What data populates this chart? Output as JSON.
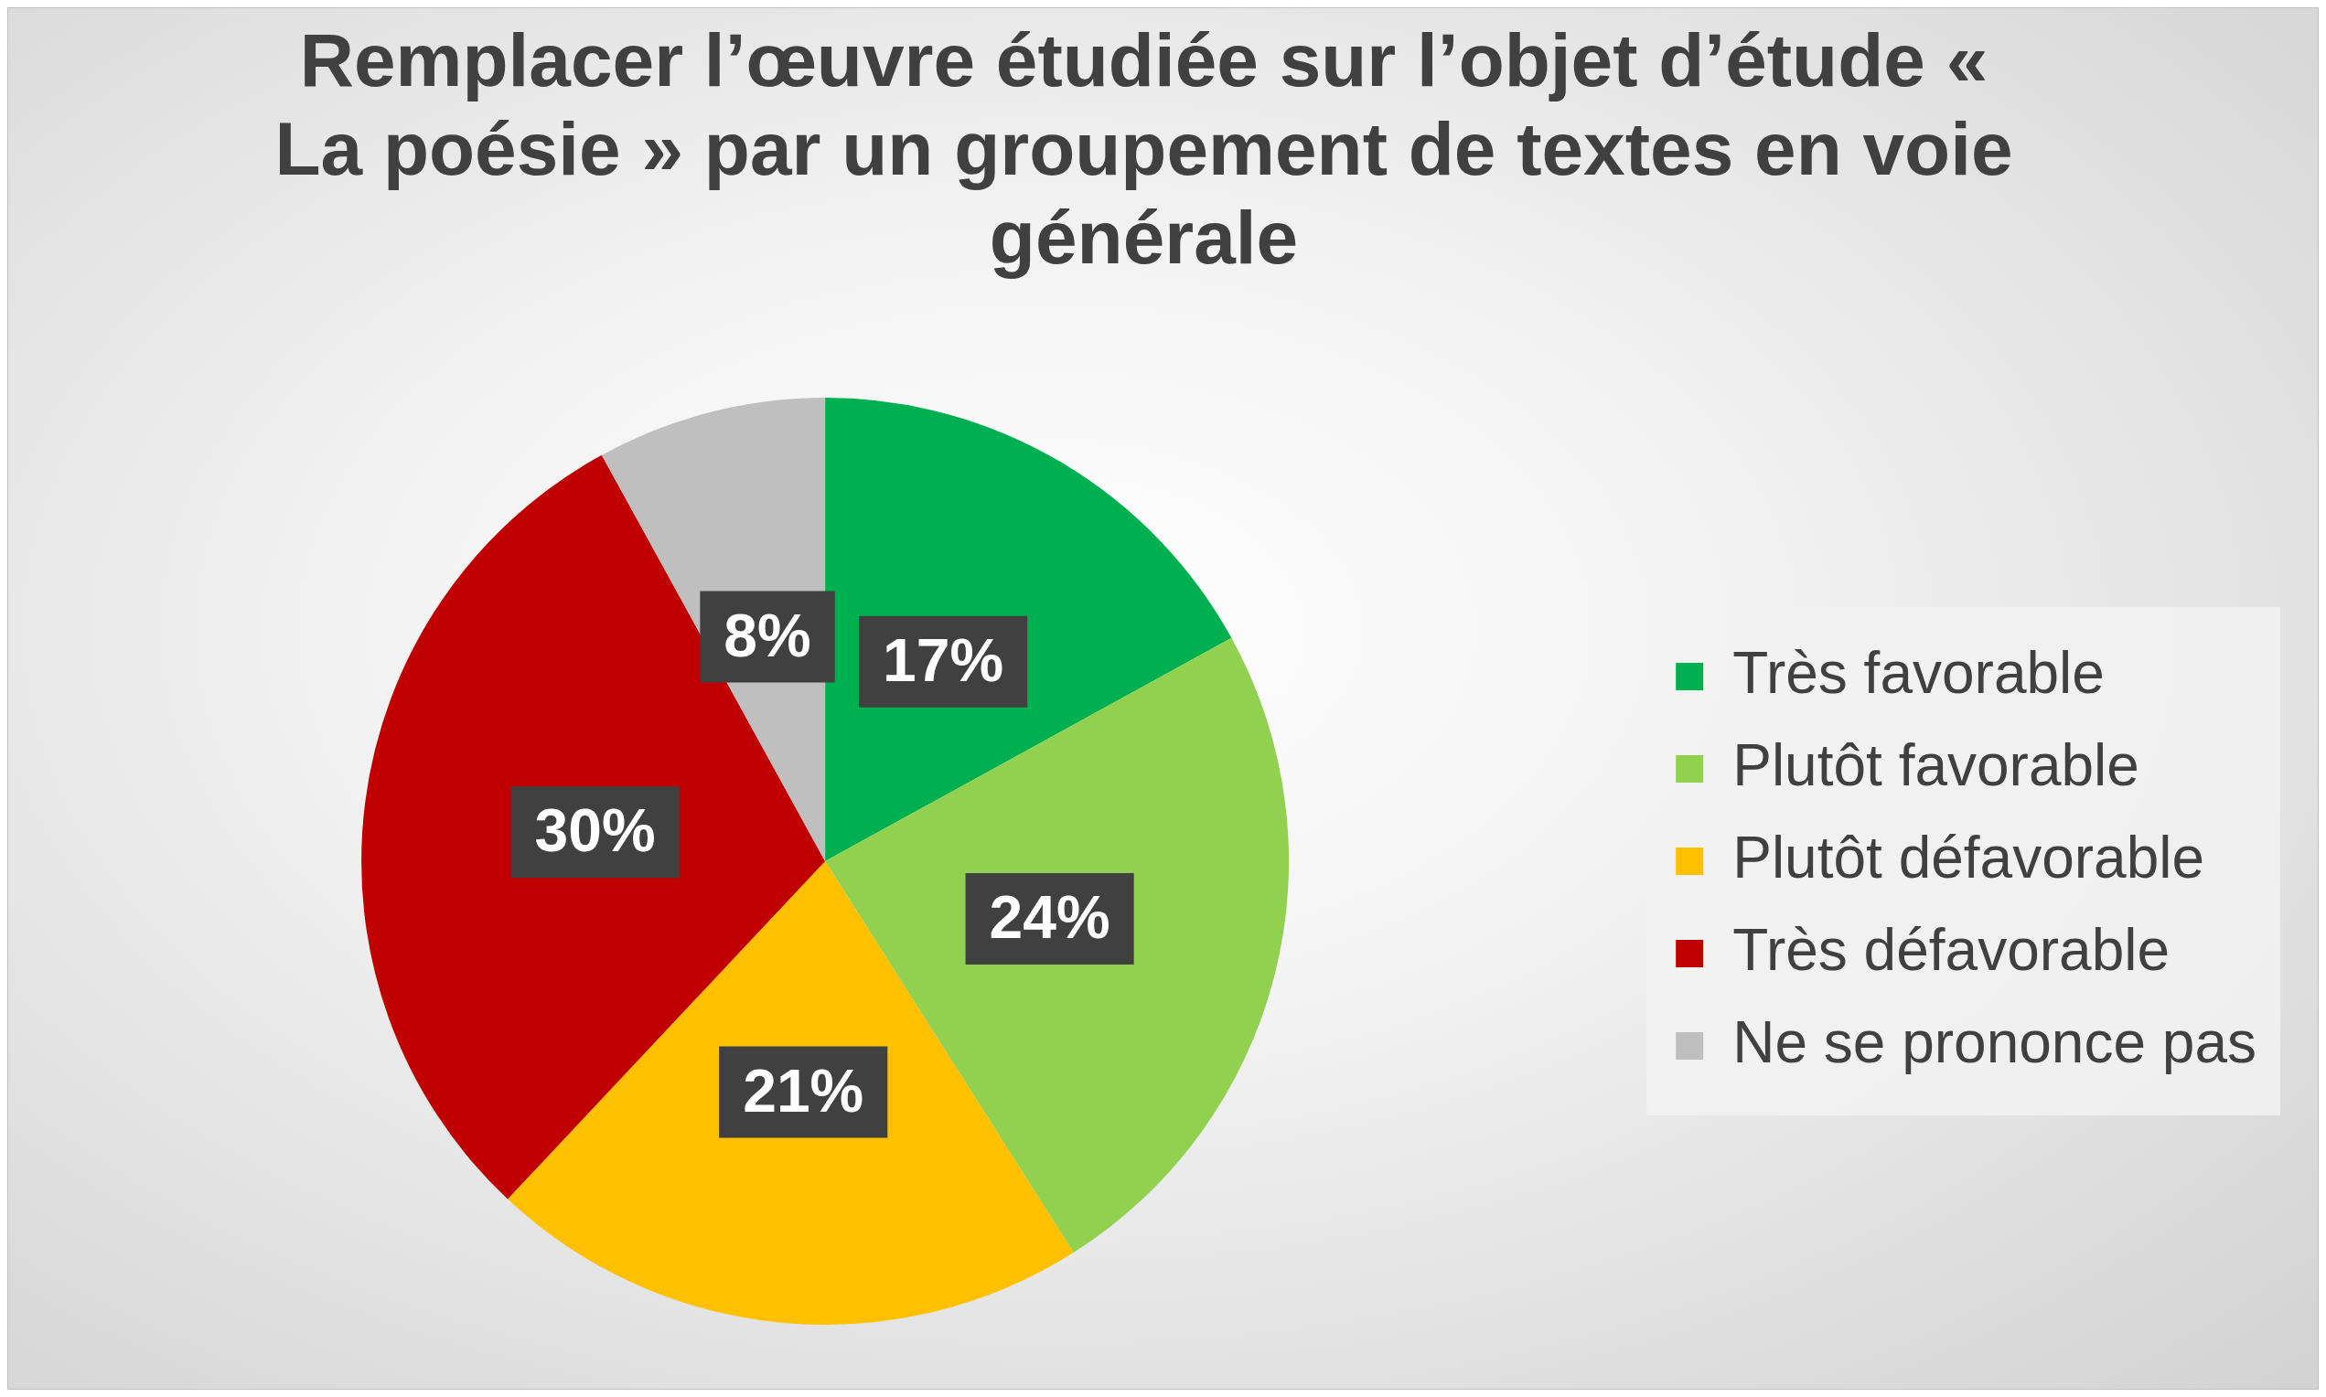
{
  "chart_data": {
    "type": "pie",
    "title": "Remplacer l’œuvre étudiée sur l’objet d’étude « La poésie » par un groupement de textes en voie générale",
    "categories": [
      "Très favorable",
      "Plutôt favorable",
      "Plutôt défavorable",
      "Très défavorable",
      "Ne se prononce pas"
    ],
    "values": [
      17,
      24,
      21,
      30,
      8
    ],
    "colors": [
      "#00b050",
      "#92d050",
      "#ffc000",
      "#c00000",
      "#bfbfbf"
    ],
    "value_labels": [
      "17%",
      "24%",
      "21%",
      "30%",
      "8%"
    ],
    "legend": "right"
  }
}
